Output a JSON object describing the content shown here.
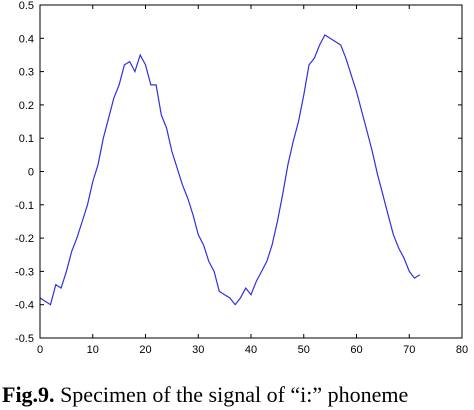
{
  "chart_data": {
    "type": "line",
    "title": "",
    "xlabel": "",
    "ylabel": "",
    "xlim": [
      0,
      80
    ],
    "ylim": [
      -0.5,
      0.5
    ],
    "x_ticks": [
      "0",
      "10",
      "20",
      "30",
      "40",
      "50",
      "60",
      "70",
      "80"
    ],
    "y_ticks": [
      "0.5",
      "0.4",
      "0.3",
      "0.2",
      "0.1",
      "0",
      "-0.1",
      "-0.2",
      "-0.3",
      "-0.4",
      "-0.5"
    ],
    "grid": false,
    "series": [
      {
        "color": "#3030e0",
        "x": [
          0,
          1,
          2,
          3,
          4,
          5,
          6,
          7,
          8,
          9,
          10,
          11,
          12,
          13,
          14,
          15,
          16,
          17,
          18,
          19,
          20,
          21,
          22,
          23,
          24,
          25,
          26,
          27,
          28,
          29,
          30,
          31,
          32,
          33,
          34,
          35,
          36,
          37,
          38,
          39,
          40,
          41,
          42,
          43,
          44,
          45,
          46,
          47,
          48,
          49,
          50,
          51,
          52,
          53,
          54,
          55,
          56,
          57,
          58,
          59,
          60,
          61,
          62,
          63,
          64,
          65,
          66,
          67,
          68,
          69,
          70,
          71,
          72
        ],
        "y": [
          -0.38,
          -0.39,
          -0.4,
          -0.34,
          -0.35,
          -0.3,
          -0.24,
          -0.2,
          -0.15,
          -0.1,
          -0.03,
          0.02,
          0.1,
          0.16,
          0.22,
          0.26,
          0.32,
          0.33,
          0.3,
          0.35,
          0.32,
          0.26,
          0.26,
          0.17,
          0.13,
          0.06,
          0.01,
          -0.04,
          -0.08,
          -0.13,
          -0.19,
          -0.22,
          -0.27,
          -0.3,
          -0.36,
          -0.37,
          -0.38,
          -0.4,
          -0.38,
          -0.35,
          -0.37,
          -0.33,
          -0.3,
          -0.27,
          -0.22,
          -0.15,
          -0.07,
          0.02,
          0.09,
          0.15,
          0.23,
          0.32,
          0.34,
          0.38,
          0.41,
          0.4,
          0.39,
          0.38,
          0.34,
          0.29,
          0.24,
          0.18,
          0.12,
          0.06,
          -0.01,
          -0.07,
          -0.13,
          -0.19,
          -0.23,
          -0.26,
          -0.3,
          -0.32,
          -0.31
        ]
      }
    ]
  },
  "caption": {
    "label": "Fig.9.",
    "text": " Specimen of the signal of “i:” phoneme"
  }
}
